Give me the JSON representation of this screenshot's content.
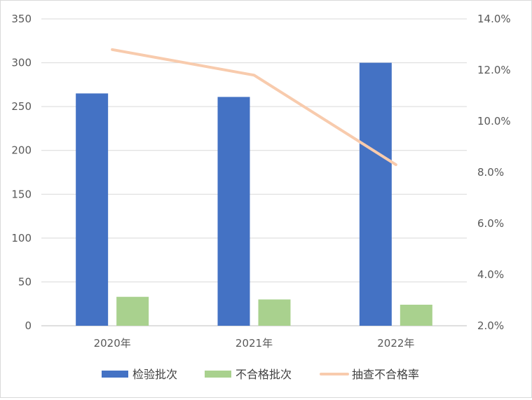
{
  "chart_data": {
    "type": "bar",
    "categories": [
      "2020年",
      "2021年",
      "2022年"
    ],
    "series": [
      {
        "name": "检验批次",
        "type": "bar",
        "axis": "left",
        "color": "#4472c4",
        "values": [
          265,
          261,
          300
        ]
      },
      {
        "name": "不合格批次",
        "type": "bar",
        "axis": "left",
        "color": "#a9d18e",
        "values": [
          33,
          30,
          24
        ]
      },
      {
        "name": "抽查不合格率",
        "type": "line",
        "axis": "right",
        "color": "#f8cbad",
        "values": [
          0.128,
          0.118,
          0.083
        ]
      }
    ],
    "y_left": {
      "ylim": [
        0,
        350
      ],
      "ticks": [
        "0",
        "50",
        "100",
        "150",
        "200",
        "250",
        "300",
        "350"
      ]
    },
    "y_right": {
      "ylim": [
        0.02,
        0.14
      ],
      "ticks": [
        "2.0%",
        "4.0%",
        "6.0%",
        "8.0%",
        "10.0%",
        "12.0%",
        "14.0%"
      ]
    },
    "grid": true,
    "legend_position": "bottom"
  }
}
